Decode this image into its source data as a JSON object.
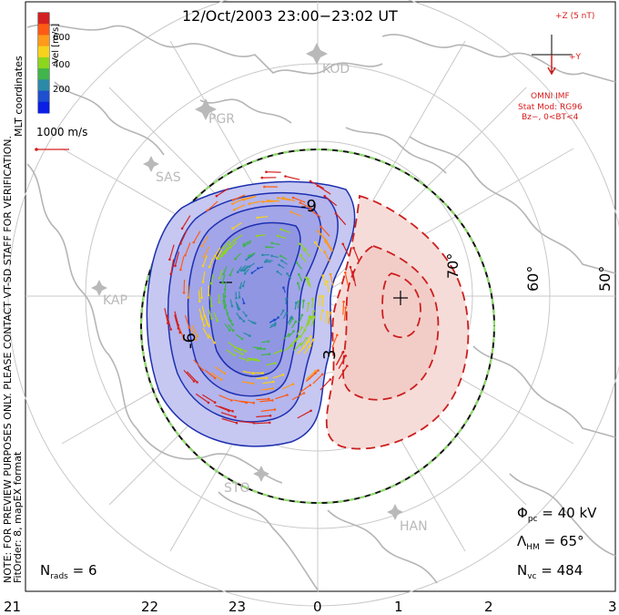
{
  "title": "12/Oct/2003 23:00−23:02 UT",
  "colorbar": {
    "label": "Vel [m/s]",
    "ticks": [
      "600",
      "400",
      "200"
    ],
    "colors": [
      "#d42020",
      "#ff5a14",
      "#ff9a1a",
      "#f7d21c",
      "#8cd61c",
      "#3fb54a",
      "#2b8aa8",
      "#1d4fd0",
      "#0a1ee6"
    ]
  },
  "mlt_coordinates": "MLT coordinates",
  "notice": "NOTE: FOR PREVIEW PURPOSES ONLY. PLEASE CONTACT VT-SD STAFF FOR VERIFICATION.",
  "fitorder": "FitOrder: 8, mapEX format",
  "scale_vector": {
    "label": "1000 m/s",
    "color": "#d42020"
  },
  "imf": {
    "z_label": "+Z (5 nT)",
    "y_label": "+Y",
    "source": "OMNI IMF",
    "model": "Stat Mod: RG96",
    "condition": "Bz−, 0<BT<4",
    "color": "#d42020"
  },
  "stations": [
    "KOD",
    "PGR",
    "SAS",
    "KAP",
    "STO",
    "HAN"
  ],
  "latitude_labels": [
    "70°",
    "60°",
    "50°"
  ],
  "mlt_labels": [
    "21",
    "22",
    "23",
    "0",
    "1",
    "2",
    "3"
  ],
  "contour_labels": [
    "-9",
    "-6",
    "3"
  ],
  "stats": {
    "phi_symbol": "Φ",
    "phi_sub": "pc",
    "phi_value": " = 40 kV",
    "lambda_symbol": "Λ",
    "lambda_sub": "HM",
    "lambda_value": " = 65°",
    "nvc_symbol": "N",
    "nvc_sub": "vc",
    "nvc_value": " = 484",
    "nrads_symbol": "N",
    "nrads_sub": "rads",
    "nrads_value": " = 6"
  },
  "potential_colors": {
    "negative_fill": "#a6a8ec",
    "negative_line": "#1d2fb0",
    "positive_fill": "#f3d0cc",
    "positive_line": "#cc1f1f"
  }
}
